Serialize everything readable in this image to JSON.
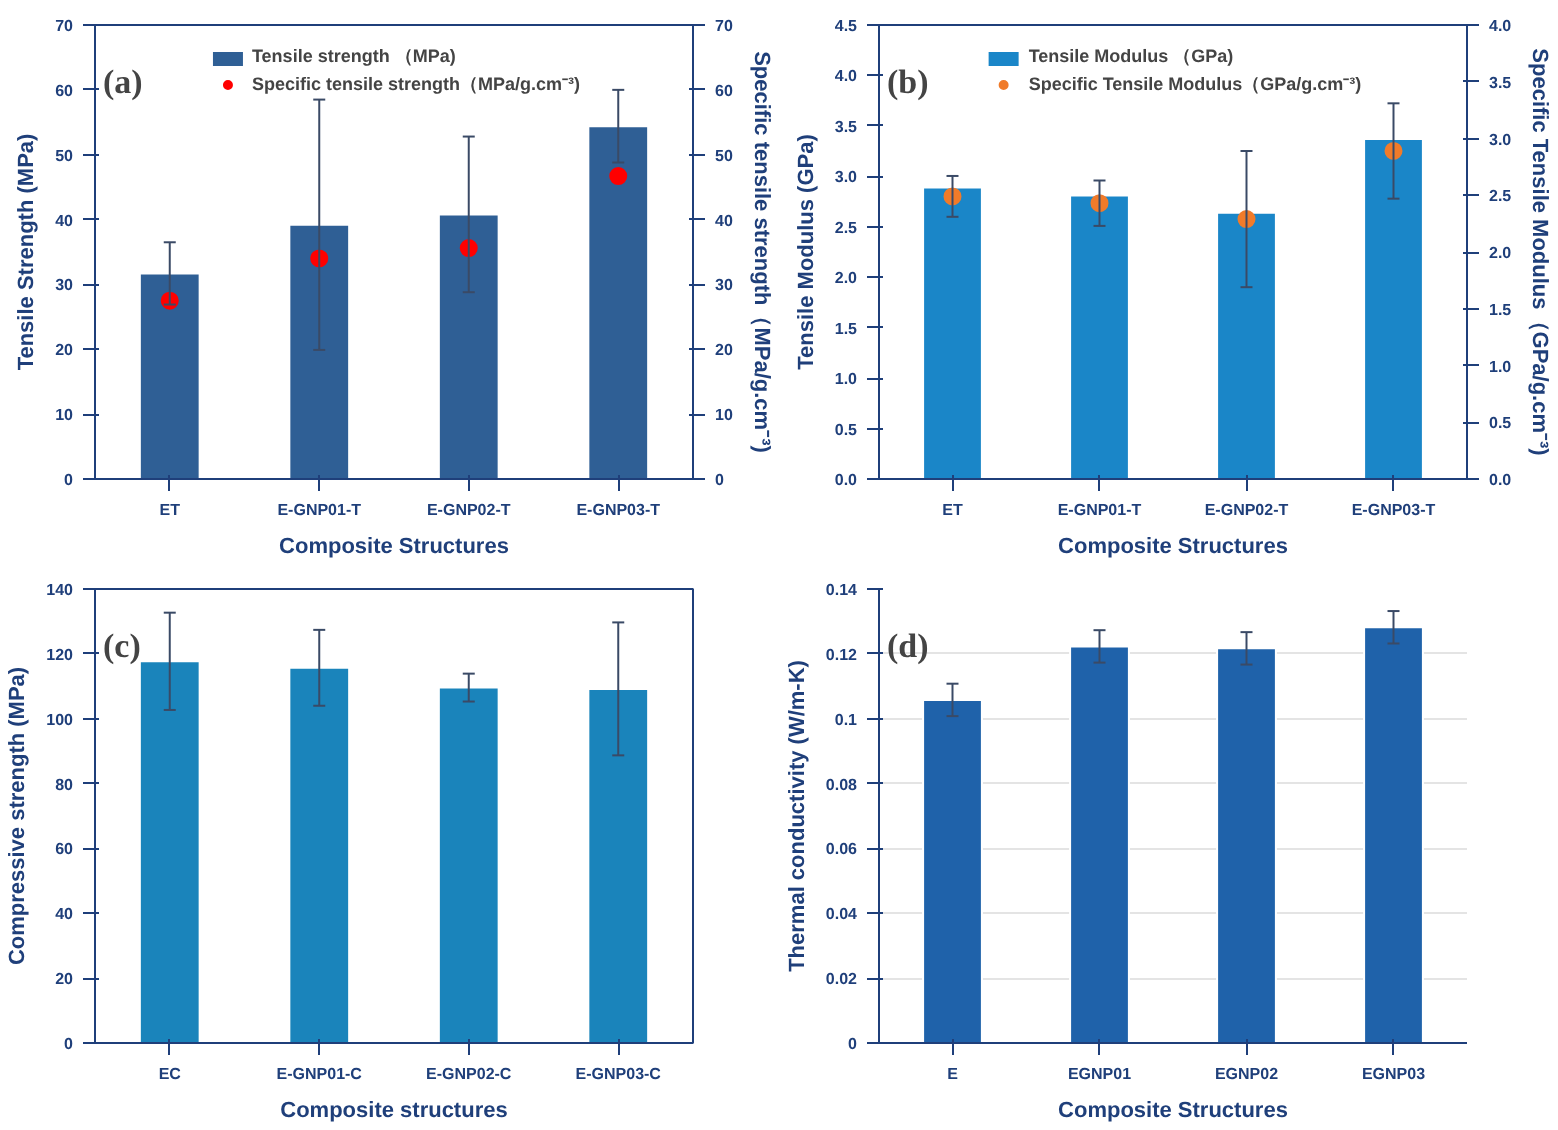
{
  "chart_data": [
    {
      "type": "bar",
      "xlabel": "Composite Structures",
      "ylabel": "Tensile Strength (MPa)",
      "y2label": "Specific tensile strength（MPa/g.cm⁻³)",
      "annotations": [
        "(a)"
      ],
      "categories": [
        "ET",
        "E-GNP01-T",
        "E-GNP02-T",
        "E-GNP03-T"
      ],
      "series": [
        {
          "name": "Tensile strength （MPa)",
          "color": "#2f5f95",
          "values": [
            31.7,
            39.2,
            40.8,
            54.4
          ],
          "errors": [
            4.8,
            19.3,
            12.0,
            5.6
          ]
        },
        {
          "type": "scatter",
          "name": "Specific tensile strength（MPa/g.cm⁻³)",
          "color": "#ff0000",
          "axis": "y2",
          "values": [
            27.5,
            34.0,
            35.6,
            46.7
          ]
        }
      ],
      "ylim": [
        0,
        70
      ],
      "yticks": [
        0,
        10,
        20,
        30,
        40,
        50,
        60,
        70
      ],
      "y2lim": [
        0,
        70
      ],
      "y2ticks": [
        0,
        10,
        20,
        30,
        40,
        50,
        60,
        70
      ],
      "legend": "top",
      "marker": "circle",
      "grid": false
    },
    {
      "type": "bar",
      "xlabel": "Composite Structures",
      "ylabel": "Tensile Modulus (GPa)",
      "y2label": "Specific Tensile Modulus（GPa/g.cm⁻³)",
      "annotations": [
        "(b)"
      ],
      "categories": [
        "ET",
        "E-GNP01-T",
        "E-GNP02-T",
        "E-GNP03-T"
      ],
      "series": [
        {
          "name": "Tensile Modulus （GPa)",
          "color": "#1a86c8",
          "values": [
            2.89,
            2.81,
            2.64,
            3.37
          ]
        },
        {
          "type": "scatter",
          "name": "Specific Tensile Modulus（GPa/g.cm⁻³)",
          "color": "#f07b2a",
          "axis": "y2",
          "values": [
            2.49,
            2.43,
            2.29,
            2.89
          ],
          "errors": [
            0.18,
            0.2,
            0.6,
            0.42
          ]
        }
      ],
      "ylim": [
        0,
        4.5
      ],
      "yticks": [
        {
          "value": 0,
          "label": "0.0"
        },
        0.5,
        {
          "value": 1,
          "label": "1.0"
        },
        1.5,
        {
          "value": 2,
          "label": "2.0"
        },
        2.5,
        {
          "value": 3,
          "label": "3.0"
        },
        3.5,
        {
          "value": 4,
          "label": "4.0"
        },
        4.5
      ],
      "y2lim": [
        0,
        4.0
      ],
      "y2ticks": [
        {
          "value": 0,
          "label": "0.0"
        },
        0.5,
        {
          "value": 1,
          "label": "1.0"
        },
        1.5,
        {
          "value": 2,
          "label": "2.0"
        },
        2.5,
        {
          "value": 3,
          "label": "3.0"
        },
        3.5,
        {
          "value": 4,
          "label": "4.0"
        }
      ],
      "legend": "top",
      "marker": "circle",
      "grid": false
    },
    {
      "type": "bar",
      "xlabel": "Composite structures",
      "ylabel": "Compressive strength (MPa)",
      "annotations": [
        "(c)"
      ],
      "categories": [
        "EC",
        "E-GNP01-C",
        "E-GNP02-C",
        "E-GNP03-C"
      ],
      "series": [
        {
          "color": "#1a84bb",
          "values": [
            117.7,
            115.7,
            109.6,
            109.2
          ],
          "errors": [
            15,
            11.7,
            4.3,
            20.5
          ]
        }
      ],
      "ylim": [
        0,
        140
      ],
      "yticks": [
        0,
        20,
        40,
        60,
        80,
        100,
        120,
        140
      ],
      "grid": false
    },
    {
      "type": "bar",
      "xlabel": "Composite Structures",
      "ylabel": "Thermal conductivity (W/m-K)",
      "annotations": [
        "(d)"
      ],
      "categories": [
        "E",
        "EGNP01",
        "EGNP02",
        "EGNP03"
      ],
      "series": [
        {
          "color": "#1f62aa",
          "values": [
            0.1058,
            0.1223,
            0.1217,
            0.1282
          ],
          "errors": [
            0.005,
            0.005,
            0.005,
            0.005
          ]
        }
      ],
      "ylim": [
        0,
        0.14
      ],
      "yticks": [
        0,
        0.02,
        0.04,
        0.06,
        0.08,
        0.1,
        0.12,
        0.14
      ],
      "grid": "y"
    }
  ]
}
